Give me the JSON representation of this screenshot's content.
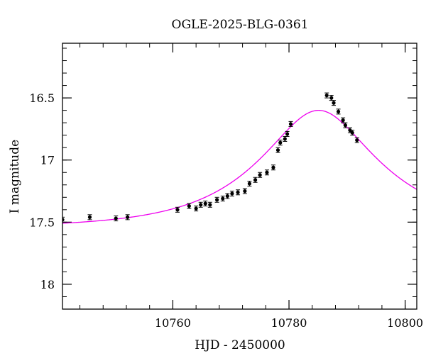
{
  "chart_data": {
    "type": "scatter",
    "title": "OGLE-2025-BLG-0361",
    "xlabel": "HJD - 2450000",
    "ylabel": "I magnitude",
    "xlim": [
      10741,
      10802
    ],
    "ylim": [
      18.2,
      16.06
    ],
    "y_inverted": true,
    "x_ticks": [
      10760,
      10780,
      10800
    ],
    "y_ticks": [
      16.5,
      17,
      17.5,
      18
    ],
    "y_tick_labels": [
      "16.5",
      "17",
      "17.5",
      "18"
    ],
    "x_minor_step": 4,
    "y_minor_step": 0.1,
    "grid": false,
    "legend": "none",
    "colors": {
      "data": "#000000",
      "model": "#ee00ee",
      "frame": "#000000"
    },
    "series": [
      {
        "kind": "points",
        "x": [
          10741.0,
          10745.7,
          10750.2,
          10752.2,
          10760.8,
          10762.8,
          10764.0,
          10764.8,
          10765.6,
          10766.4,
          10767.6,
          10768.6,
          10769.4,
          10770.2,
          10771.2,
          10772.4,
          10773.2,
          10774.2,
          10775.0,
          10776.2,
          10777.3,
          10778.1,
          10778.5,
          10779.3,
          10779.7,
          10780.3,
          10786.5,
          10787.3,
          10787.7,
          10788.5,
          10789.3,
          10789.7,
          10790.5,
          10790.9,
          10791.7
        ],
        "y": [
          17.48,
          17.46,
          17.47,
          17.46,
          17.4,
          17.37,
          17.39,
          17.36,
          17.35,
          17.36,
          17.32,
          17.31,
          17.29,
          17.27,
          17.26,
          17.25,
          17.19,
          17.16,
          17.12,
          17.1,
          17.06,
          16.92,
          16.86,
          16.83,
          16.79,
          16.71,
          16.48,
          16.5,
          16.54,
          16.61,
          16.68,
          16.72,
          16.76,
          16.78,
          16.84
        ],
        "yerr": [
          0.02,
          0.02,
          0.02,
          0.02,
          0.02,
          0.02,
          0.02,
          0.02,
          0.02,
          0.02,
          0.02,
          0.02,
          0.02,
          0.02,
          0.02,
          0.02,
          0.02,
          0.02,
          0.02,
          0.02,
          0.02,
          0.02,
          0.02,
          0.02,
          0.02,
          0.02,
          0.02,
          0.02,
          0.02,
          0.02,
          0.02,
          0.02,
          0.02,
          0.02,
          0.02
        ]
      },
      {
        "kind": "model",
        "model": "point-lens",
        "t0": 10785.1,
        "u0": 0.45,
        "tE": 18.5,
        "baseline": 17.545
      }
    ]
  }
}
